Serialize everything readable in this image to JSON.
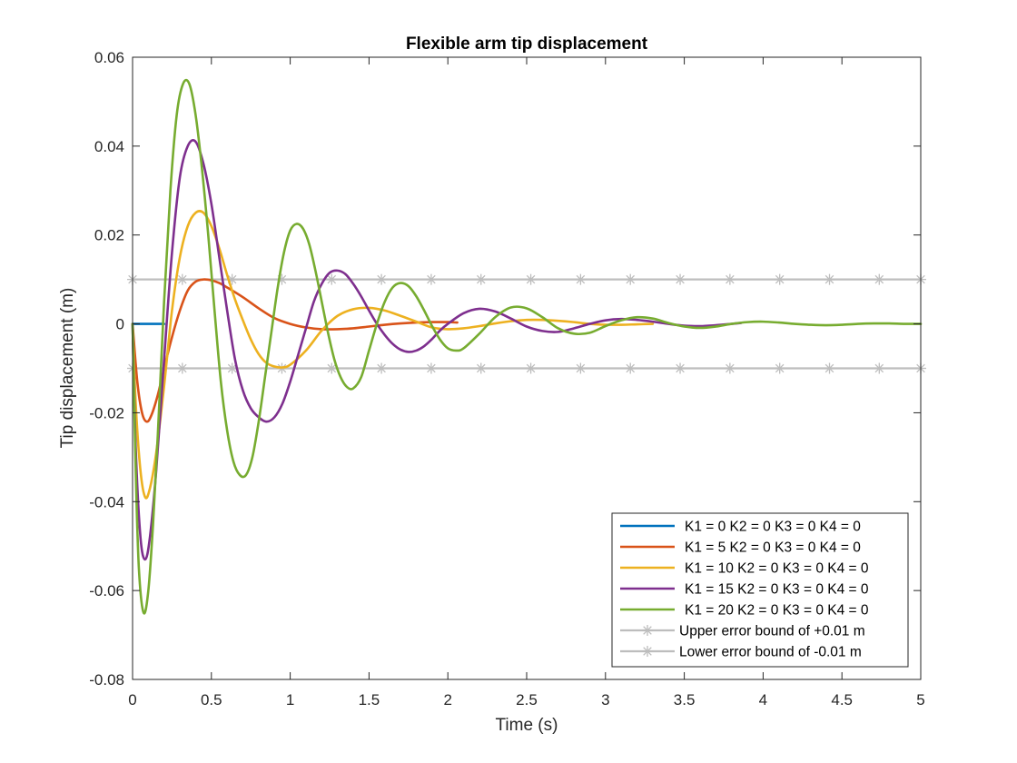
{
  "chart_data": {
    "type": "line",
    "title": "Flexible arm tip displacement",
    "xlabel": "Time (s)",
    "ylabel": "Tip displacement (m)",
    "xlim": [
      0,
      5
    ],
    "ylim": [
      -0.08,
      0.06
    ],
    "xticks": [
      0,
      0.5,
      1,
      1.5,
      2,
      2.5,
      3,
      3.5,
      4,
      4.5,
      5
    ],
    "xtick_labels": [
      "0",
      "0.5",
      "1",
      "1.5",
      "2",
      "2.5",
      "3",
      "3.5",
      "4",
      "4.5",
      "5"
    ],
    "yticks": [
      -0.08,
      -0.06,
      -0.04,
      -0.02,
      0,
      0.02,
      0.04,
      0.06
    ],
    "ytick_labels": [
      "-0.08",
      "-0.06",
      "-0.04",
      "-0.02",
      "0",
      "0.02",
      "0.04",
      "0.06"
    ],
    "grid": false,
    "legend_position": "bottom-right",
    "series": [
      {
        "name": "K1 = 0 K2 = 0 K3 = 0 K4 = 0",
        "color": "#0072BD",
        "x": [
          0,
          0.1,
          0.2
        ],
        "y": [
          0,
          0,
          0
        ]
      },
      {
        "name": "K1 = 5 K2 = 0 K3 = 0 K4 = 0",
        "color": "#D95319",
        "x": [
          0,
          0.03,
          0.06,
          0.09,
          0.12,
          0.16,
          0.2,
          0.25,
          0.3,
          0.35,
          0.4,
          0.45,
          0.5,
          0.55,
          0.6,
          0.7,
          0.8,
          0.9,
          1.0,
          1.1,
          1.2,
          1.3,
          1.4,
          1.5,
          1.6,
          1.7,
          1.8,
          1.9,
          2.0,
          2.06
        ],
        "y": [
          0,
          -0.013,
          -0.02,
          -0.022,
          -0.0205,
          -0.016,
          -0.01,
          -0.003,
          0.003,
          0.0075,
          0.0095,
          0.01,
          0.0098,
          0.0092,
          0.0082,
          0.006,
          0.0035,
          0.0013,
          0,
          -0.0008,
          -0.0012,
          -0.0012,
          -0.001,
          -0.0006,
          -0.0002,
          0.0001,
          0.0003,
          0.0004,
          0.0004,
          0.0003
        ]
      },
      {
        "name": "K1 = 10 K2 = 0 K3 = 0 K4 = 0",
        "color": "#EDB120",
        "x": [
          0,
          0.02,
          0.05,
          0.08,
          0.11,
          0.15,
          0.2,
          0.25,
          0.3,
          0.35,
          0.4,
          0.45,
          0.5,
          0.55,
          0.6,
          0.65,
          0.7,
          0.75,
          0.8,
          0.85,
          0.9,
          0.95,
          1.0,
          1.1,
          1.2,
          1.3,
          1.4,
          1.5,
          1.6,
          1.7,
          1.8,
          1.9,
          2.0,
          2.1,
          2.2,
          2.3,
          2.4,
          2.5,
          2.6,
          2.7,
          2.8,
          2.9,
          3.0,
          3.1,
          3.2,
          3.3
        ],
        "y": [
          0,
          -0.018,
          -0.033,
          -0.039,
          -0.037,
          -0.029,
          -0.014,
          0.003,
          0.015,
          0.022,
          0.025,
          0.025,
          0.022,
          0.017,
          0.011,
          0.0055,
          0.0008,
          -0.0035,
          -0.0068,
          -0.0088,
          -0.0096,
          -0.0098,
          -0.0092,
          -0.006,
          -0.0015,
          0.0018,
          0.0033,
          0.0036,
          0.003,
          0.0018,
          0.0005,
          -0.0008,
          -0.0012,
          -0.001,
          -0.0005,
          0.0001,
          0.0006,
          0.0009,
          0.0009,
          0.0007,
          0.0004,
          0,
          -0.0002,
          -0.0002,
          -0.0001,
          0
        ]
      },
      {
        "name": "K1 = 15 K2 = 0 K3 = 0 K4 = 0",
        "color": "#7E2F8E",
        "x": [
          0,
          0.02,
          0.05,
          0.08,
          0.11,
          0.15,
          0.2,
          0.25,
          0.3,
          0.35,
          0.4,
          0.45,
          0.5,
          0.55,
          0.6,
          0.65,
          0.7,
          0.75,
          0.8,
          0.85,
          0.9,
          0.95,
          1.0,
          1.05,
          1.1,
          1.15,
          1.2,
          1.25,
          1.3,
          1.35,
          1.4,
          1.45,
          1.5,
          1.55,
          1.6,
          1.65,
          1.7,
          1.75,
          1.8,
          1.85,
          1.9,
          1.95,
          2.0,
          2.1,
          2.2,
          2.3,
          2.4,
          2.5,
          2.6,
          2.7,
          2.8,
          2.9,
          3.0,
          3.1,
          3.2,
          3.3,
          3.4,
          3.5,
          3.6,
          3.7,
          3.8,
          3.86
        ],
        "y": [
          0,
          -0.028,
          -0.048,
          -0.053,
          -0.048,
          -0.033,
          -0.008,
          0.016,
          0.033,
          0.04,
          0.041,
          0.036,
          0.027,
          0.015,
          0.003,
          -0.008,
          -0.015,
          -0.019,
          -0.021,
          -0.022,
          -0.021,
          -0.018,
          -0.013,
          -0.007,
          -0.001,
          0.005,
          0.009,
          0.0115,
          0.012,
          0.0112,
          0.009,
          0.0062,
          0.003,
          0,
          -0.0025,
          -0.0045,
          -0.0058,
          -0.0063,
          -0.006,
          -0.005,
          -0.0034,
          -0.0015,
          0,
          0.0024,
          0.0034,
          0.0028,
          0.0012,
          -0.0006,
          -0.0016,
          -0.0018,
          -0.001,
          0,
          0.0008,
          0.0011,
          0.0009,
          0.0005,
          0,
          -0.0004,
          -0.0005,
          -0.0003,
          0,
          0.0002
        ]
      },
      {
        "name": "K1 = 20 K2 = 0 K3 = 0 K4 = 0",
        "color": "#77AC30",
        "x": [
          0,
          0.02,
          0.04,
          0.07,
          0.1,
          0.13,
          0.16,
          0.2,
          0.24,
          0.28,
          0.32,
          0.36,
          0.4,
          0.44,
          0.48,
          0.52,
          0.56,
          0.6,
          0.64,
          0.68,
          0.72,
          0.76,
          0.8,
          0.84,
          0.88,
          0.92,
          0.96,
          1.0,
          1.04,
          1.08,
          1.12,
          1.16,
          1.2,
          1.24,
          1.28,
          1.32,
          1.36,
          1.4,
          1.45,
          1.5,
          1.55,
          1.6,
          1.65,
          1.7,
          1.75,
          1.8,
          1.85,
          1.9,
          1.95,
          2.0,
          2.05,
          2.1,
          2.2,
          2.3,
          2.4,
          2.5,
          2.6,
          2.7,
          2.8,
          2.9,
          3.0,
          3.1,
          3.2,
          3.3,
          3.4,
          3.5,
          3.6,
          3.7,
          3.8,
          3.9,
          4.0,
          4.1,
          4.2,
          4.3,
          4.4,
          4.5,
          4.6,
          4.7,
          4.8,
          4.9,
          5.0
        ],
        "y": [
          0,
          -0.033,
          -0.055,
          -0.065,
          -0.06,
          -0.045,
          -0.025,
          0.005,
          0.03,
          0.047,
          0.054,
          0.054,
          0.047,
          0.035,
          0.02,
          0.003,
          -0.013,
          -0.024,
          -0.031,
          -0.034,
          -0.034,
          -0.03,
          -0.022,
          -0.012,
          -0.002,
          0.008,
          0.016,
          0.021,
          0.0225,
          0.0215,
          0.018,
          0.012,
          0.005,
          -0.002,
          -0.008,
          -0.012,
          -0.0142,
          -0.0145,
          -0.012,
          -0.006,
          0,
          0.005,
          0.0082,
          0.0092,
          0.0085,
          0.0062,
          0.003,
          -0.0005,
          -0.0035,
          -0.0055,
          -0.006,
          -0.0055,
          -0.0022,
          0.0015,
          0.0037,
          0.0035,
          0.0015,
          -0.001,
          -0.0022,
          -0.002,
          -0.0005,
          0.0008,
          0.0015,
          0.0012,
          0.0002,
          -0.0006,
          -0.0009,
          -0.0006,
          0,
          0.0004,
          0.0005,
          0.0003,
          0,
          -0.0002,
          -0.0003,
          -0.0002,
          0,
          0.0001,
          0.0001,
          0,
          0
        ]
      },
      {
        "name": "Upper error bound of +0.01 m",
        "color": "#BDBDBD",
        "marker": "asterisk",
        "x": [
          0,
          0.3158,
          0.6316,
          0.9474,
          1.2632,
          1.5789,
          1.8947,
          2.2105,
          2.5263,
          2.8421,
          3.1579,
          3.4737,
          3.7895,
          4.1053,
          4.4211,
          4.7368,
          5
        ],
        "y": [
          0.01,
          0.01,
          0.01,
          0.01,
          0.01,
          0.01,
          0.01,
          0.01,
          0.01,
          0.01,
          0.01,
          0.01,
          0.01,
          0.01,
          0.01,
          0.01,
          0.01
        ]
      },
      {
        "name": "Lower error bound of -0.01 m",
        "color": "#BDBDBD",
        "marker": "asterisk",
        "x": [
          0,
          0.3158,
          0.6316,
          0.9474,
          1.2632,
          1.5789,
          1.8947,
          2.2105,
          2.5263,
          2.8421,
          3.1579,
          3.4737,
          3.7895,
          4.1053,
          4.4211,
          4.7368,
          5
        ],
        "y": [
          -0.01,
          -0.01,
          -0.01,
          -0.01,
          -0.01,
          -0.01,
          -0.01,
          -0.01,
          -0.01,
          -0.01,
          -0.01,
          -0.01,
          -0.01,
          -0.01,
          -0.01,
          -0.01,
          -0.01
        ]
      }
    ]
  }
}
